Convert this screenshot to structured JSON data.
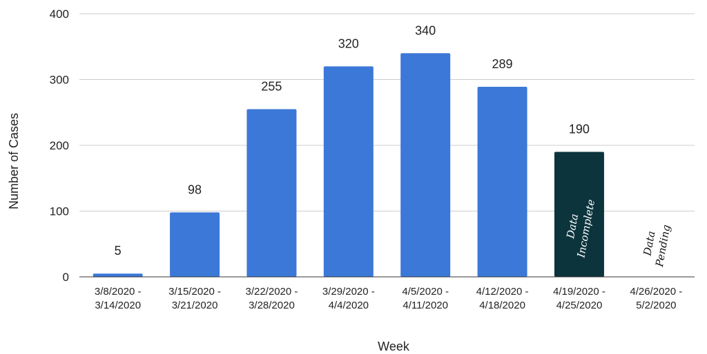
{
  "chart_data": {
    "type": "bar",
    "title": "",
    "xlabel": "Week",
    "ylabel": "Number of Cases",
    "ylim": [
      0,
      400
    ],
    "yticks": [
      "0",
      "100",
      "200",
      "300",
      "400"
    ],
    "grid": true,
    "legend": "none",
    "categories": [
      [
        "3/8/2020 -",
        "3/14/2020"
      ],
      [
        "3/15/2020 -",
        "3/21/2020"
      ],
      [
        "3/22/2020 -",
        "3/28/2020"
      ],
      [
        "3/29/2020 -",
        "4/4/2020"
      ],
      [
        "4/5/2020 -",
        "4/11/2020"
      ],
      [
        "4/12/2020 -",
        "4/18/2020"
      ],
      [
        "4/19/2020 -",
        "4/25/2020"
      ],
      [
        "4/26/2020 -",
        "5/2/2020"
      ]
    ],
    "values": [
      5,
      98,
      255,
      320,
      340,
      289,
      190,
      null
    ],
    "data_labels": [
      "5",
      "98",
      "255",
      "320",
      "340",
      "289",
      "190",
      ""
    ],
    "bar_colors": [
      "#3c78d8",
      "#3c78d8",
      "#3c78d8",
      "#3c78d8",
      "#3c78d8",
      "#3c78d8",
      "#0c343d",
      "#3c78d8"
    ],
    "annotations": [
      {
        "category_index": 6,
        "lines": [
          "Data",
          "Incomplete"
        ],
        "color": "#ffffff"
      },
      {
        "category_index": 7,
        "lines": [
          "Data",
          "Pending"
        ],
        "color": "#111111"
      }
    ]
  }
}
